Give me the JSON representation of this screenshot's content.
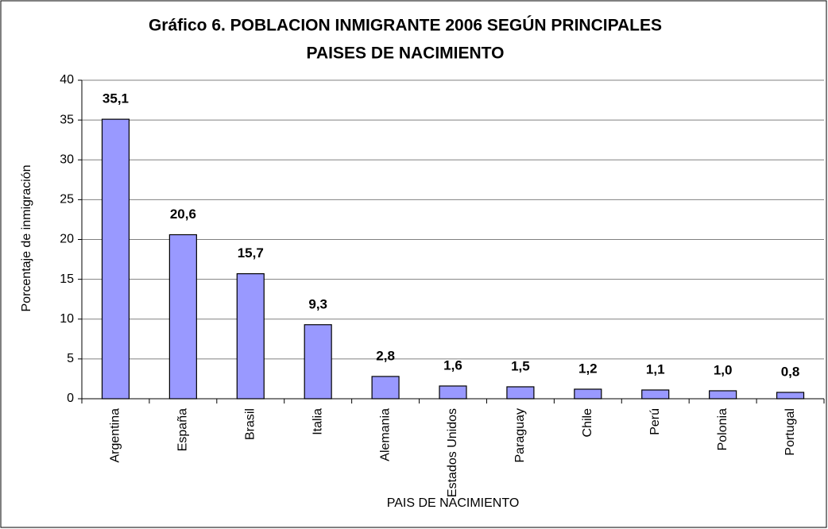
{
  "chart_data": {
    "type": "bar",
    "title": [
      "Gráfico 6. POBLACION INMIGRANTE 2006 SEGÚN PRINCIPALES",
      "PAISES DE NACIMIENTO"
    ],
    "x_label": "PAIS DE NACIMIENTO",
    "y_label": "Porcentaje de inmigración",
    "categories": [
      "Argentina",
      "España",
      "Brasil",
      "Italia",
      "Alemania",
      "Estados Unidos",
      "Paraguay",
      "Chile",
      "Perú",
      "Polonia",
      "Portugal"
    ],
    "values": [
      35.1,
      20.6,
      15.7,
      9.3,
      2.8,
      1.6,
      1.5,
      1.2,
      1.1,
      1.0,
      0.8
    ],
    "value_labels": [
      "35,1",
      "20,6",
      "15,7",
      "9,3",
      "2,8",
      "1,6",
      "1,5",
      "1,2",
      "1,1",
      "1,0",
      "0,8"
    ],
    "color": "#9999ff",
    "ylim": [
      0,
      40
    ],
    "yticks": [
      0,
      5,
      10,
      15,
      20,
      25,
      30,
      35,
      40
    ],
    "grid": true
  }
}
